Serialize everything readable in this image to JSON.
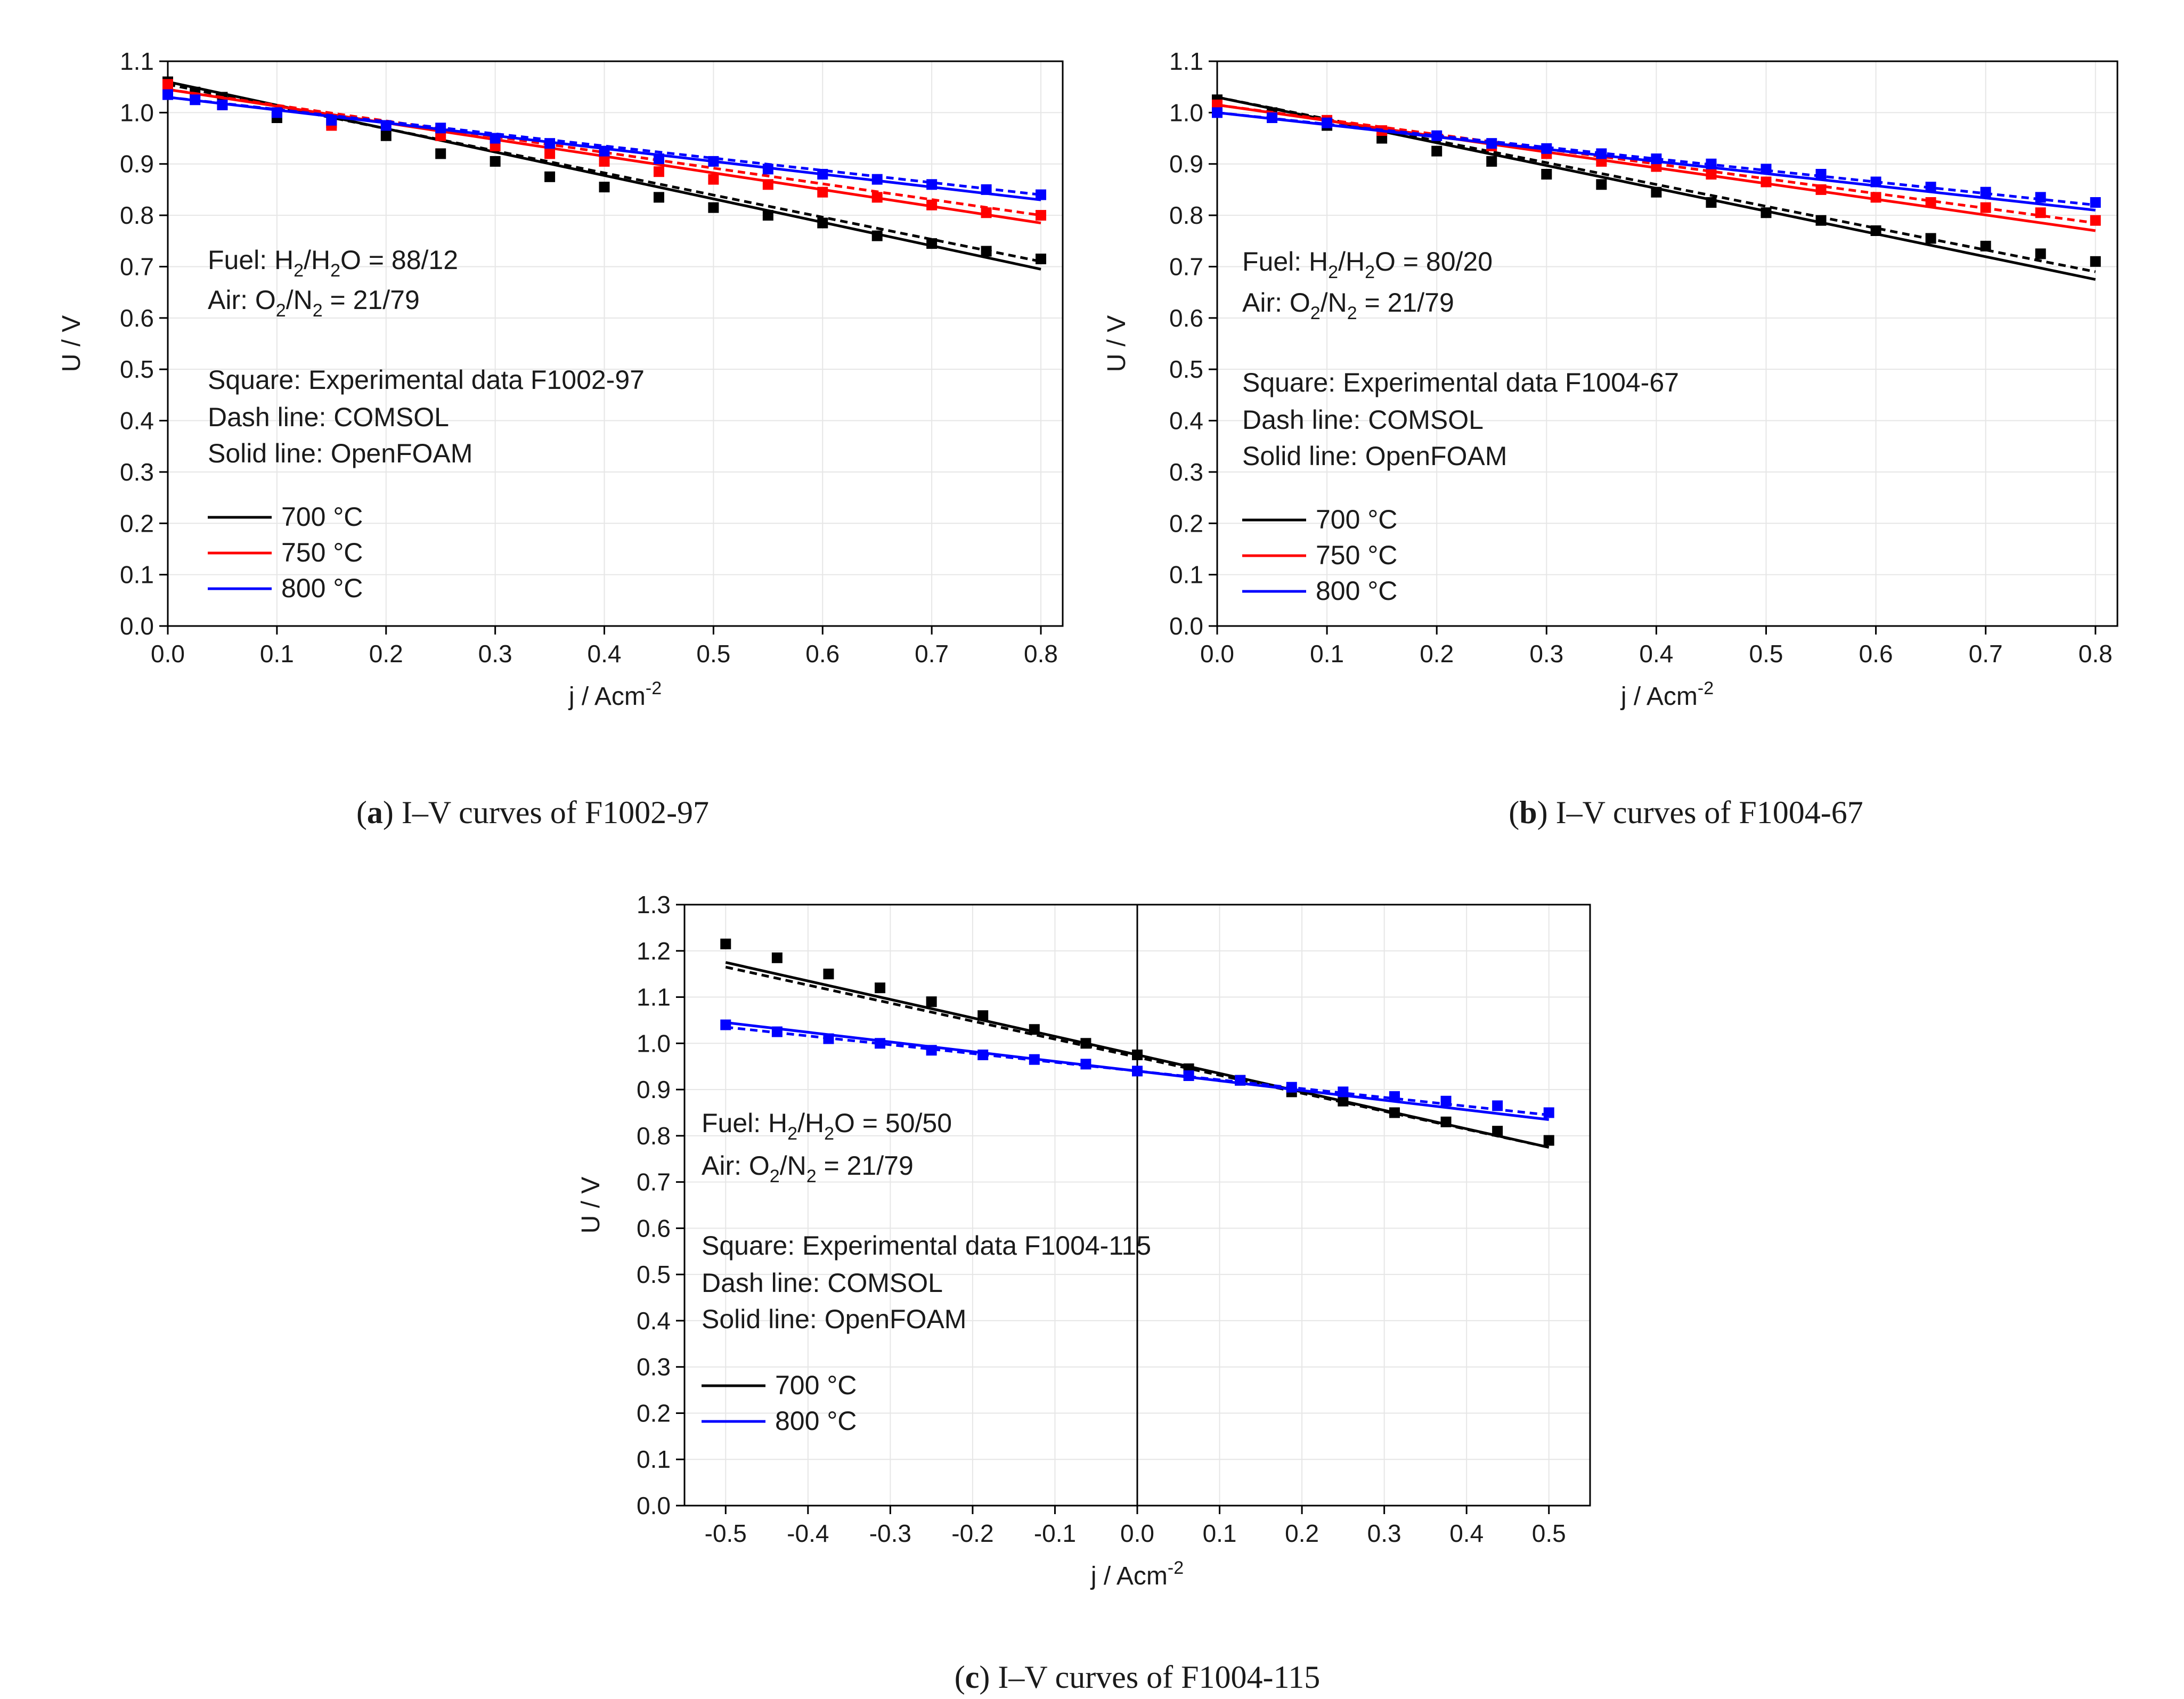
{
  "chart_data": [
    {
      "type": "line",
      "panel": "a",
      "caption_letter": "a",
      "caption_text": "I–V curves of F1002-97",
      "xlabel": "j / Acm",
      "xlabel_sup": "-2",
      "ylabel": "U / V",
      "xlim": [
        0.0,
        0.82
      ],
      "ylim": [
        0.0,
        1.1
      ],
      "xticks": [
        0.0,
        0.1,
        0.2,
        0.3,
        0.4,
        0.5,
        0.6,
        0.7,
        0.8
      ],
      "xtick_labels": [
        "0.0",
        "0.1",
        "0.2",
        "0.3",
        "0.4",
        "0.5",
        "0.6",
        "0.7",
        "0.8"
      ],
      "yticks": [
        0.0,
        0.1,
        0.2,
        0.3,
        0.4,
        0.5,
        0.6,
        0.7,
        0.8,
        0.9,
        1.0,
        1.1
      ],
      "ytick_labels": [
        "0.0",
        "0.1",
        "0.2",
        "0.3",
        "0.4",
        "0.5",
        "0.6",
        "0.7",
        "0.8",
        "0.9",
        "1.0",
        "1.1"
      ],
      "grid": true,
      "zero_line": false,
      "annotation": {
        "fuel_prefix": "Fuel: H",
        "fuel_sub1": "2",
        "fuel_mid": "/H",
        "fuel_sub2": "2",
        "fuel_suffix": "O = 88/12",
        "air_prefix": "Air: O",
        "air_sub1": "2",
        "air_mid": "/N",
        "air_sub2": "2",
        "air_suffix": " = 21/79",
        "square_text": "Square: Experimental data F1002-97",
        "dash_text": "Dash line: COMSOL",
        "solid_text": "Solid line: OpenFOAM"
      },
      "legend": [
        "700 °C",
        "750 °C",
        "800 °C"
      ],
      "series": [
        {
          "name": "700 °C",
          "color": "#000000",
          "x": [
            0.0,
            0.025,
            0.05,
            0.1,
            0.15,
            0.2,
            0.25,
            0.3,
            0.35,
            0.4,
            0.45,
            0.5,
            0.55,
            0.6,
            0.65,
            0.7,
            0.75,
            0.8
          ],
          "exp": [
            1.06,
            1.04,
            1.03,
            0.99,
            0.98,
            0.955,
            0.92,
            0.905,
            0.875,
            0.855,
            0.835,
            0.815,
            0.8,
            0.785,
            0.76,
            0.745,
            0.73,
            0.715
          ],
          "comsol": [
            1.055,
            0.71
          ],
          "openfoam": [
            1.06,
            0.695
          ]
        },
        {
          "name": "750 °C",
          "color": "#ff0000",
          "x": [
            0.0,
            0.05,
            0.15,
            0.25,
            0.3,
            0.35,
            0.4,
            0.45,
            0.5,
            0.55,
            0.6,
            0.65,
            0.7,
            0.75,
            0.8
          ],
          "exp": [
            1.055,
            1.015,
            0.975,
            0.955,
            0.935,
            0.92,
            0.905,
            0.885,
            0.87,
            0.86,
            0.845,
            0.835,
            0.82,
            0.805,
            0.8
          ],
          "comsol": [
            1.045,
            0.8
          ],
          "openfoam": [
            1.045,
            0.785
          ]
        },
        {
          "name": "800 °C",
          "color": "#0000ff",
          "x": [
            0.0,
            0.025,
            0.05,
            0.1,
            0.15,
            0.2,
            0.25,
            0.3,
            0.35,
            0.4,
            0.45,
            0.5,
            0.55,
            0.6,
            0.65,
            0.7,
            0.75,
            0.8
          ],
          "exp": [
            1.035,
            1.025,
            1.015,
            1.0,
            0.985,
            0.975,
            0.97,
            0.95,
            0.94,
            0.925,
            0.91,
            0.905,
            0.89,
            0.88,
            0.87,
            0.86,
            0.85,
            0.84
          ],
          "comsol": [
            1.03,
            0.84
          ],
          "openfoam": [
            1.03,
            0.83
          ]
        }
      ]
    },
    {
      "type": "line",
      "panel": "b",
      "caption_letter": "b",
      "caption_text": "I–V curves of F1004-67",
      "xlabel": "j / Acm",
      "xlabel_sup": "-2",
      "ylabel": "U / V",
      "xlim": [
        0.0,
        0.82
      ],
      "ylim": [
        0.0,
        1.1
      ],
      "xticks": [
        0.0,
        0.1,
        0.2,
        0.3,
        0.4,
        0.5,
        0.6,
        0.7,
        0.8
      ],
      "xtick_labels": [
        "0.0",
        "0.1",
        "0.2",
        "0.3",
        "0.4",
        "0.5",
        "0.6",
        "0.7",
        "0.8"
      ],
      "yticks": [
        0.0,
        0.1,
        0.2,
        0.3,
        0.4,
        0.5,
        0.6,
        0.7,
        0.8,
        0.9,
        1.0,
        1.1
      ],
      "ytick_labels": [
        "0.0",
        "0.1",
        "0.2",
        "0.3",
        "0.4",
        "0.5",
        "0.6",
        "0.7",
        "0.8",
        "0.9",
        "1.0",
        "1.1"
      ],
      "grid": true,
      "zero_line": false,
      "annotation": {
        "fuel_prefix": "Fuel: H",
        "fuel_sub1": "2",
        "fuel_mid": "/H",
        "fuel_sub2": "2",
        "fuel_suffix": "O = 80/20",
        "air_prefix": "Air: O",
        "air_sub1": "2",
        "air_mid": "/N",
        "air_sub2": "2",
        "air_suffix": " = 21/79",
        "square_text": "Square: Experimental data F1004-67",
        "dash_text": "Dash line: COMSOL",
        "solid_text": "Solid line: OpenFOAM"
      },
      "legend": [
        "700 °C",
        "750 °C",
        "800 °C"
      ],
      "series": [
        {
          "name": "700 °C",
          "color": "#000000",
          "x": [
            0.0,
            0.05,
            0.1,
            0.15,
            0.2,
            0.25,
            0.3,
            0.35,
            0.4,
            0.45,
            0.5,
            0.55,
            0.6,
            0.65,
            0.7,
            0.75,
            0.8
          ],
          "exp": [
            1.025,
            1.0,
            0.975,
            0.95,
            0.925,
            0.905,
            0.88,
            0.86,
            0.845,
            0.825,
            0.805,
            0.79,
            0.77,
            0.755,
            0.74,
            0.725,
            0.71
          ],
          "comsol": [
            1.03,
            0.69
          ],
          "openfoam": [
            1.03,
            0.675
          ]
        },
        {
          "name": "750 °C",
          "color": "#ff0000",
          "x": [
            0.0,
            0.1,
            0.15,
            0.25,
            0.3,
            0.35,
            0.4,
            0.45,
            0.5,
            0.55,
            0.6,
            0.65,
            0.7,
            0.75,
            0.8
          ],
          "exp": [
            1.015,
            0.985,
            0.965,
            0.935,
            0.92,
            0.905,
            0.895,
            0.88,
            0.865,
            0.85,
            0.835,
            0.825,
            0.815,
            0.805,
            0.79
          ],
          "comsol": [
            1.015,
            0.785
          ],
          "openfoam": [
            1.015,
            0.77
          ]
        },
        {
          "name": "800 °C",
          "color": "#0000ff",
          "x": [
            0.0,
            0.05,
            0.1,
            0.2,
            0.25,
            0.3,
            0.35,
            0.4,
            0.45,
            0.5,
            0.55,
            0.6,
            0.65,
            0.7,
            0.75,
            0.8
          ],
          "exp": [
            1.0,
            0.99,
            0.98,
            0.955,
            0.94,
            0.93,
            0.92,
            0.91,
            0.9,
            0.89,
            0.88,
            0.865,
            0.855,
            0.845,
            0.835,
            0.825
          ],
          "comsol": [
            1.0,
            0.82
          ],
          "openfoam": [
            1.0,
            0.81
          ]
        }
      ]
    },
    {
      "type": "line",
      "panel": "c",
      "caption_letter": "c",
      "caption_text": "I–V curves of F1004-115",
      "xlabel": "j / Acm",
      "xlabel_sup": "-2",
      "ylabel": "U / V",
      "xlim": [
        -0.55,
        0.55
      ],
      "ylim": [
        0.0,
        1.3
      ],
      "xticks": [
        -0.5,
        -0.4,
        -0.3,
        -0.2,
        -0.1,
        0.0,
        0.1,
        0.2,
        0.3,
        0.4,
        0.5
      ],
      "xtick_labels": [
        "-0.5",
        "-0.4",
        "-0.3",
        "-0.2",
        "-0.1",
        "0.0",
        "0.1",
        "0.2",
        "0.3",
        "0.4",
        "0.5"
      ],
      "yticks": [
        0.0,
        0.1,
        0.2,
        0.3,
        0.4,
        0.5,
        0.6,
        0.7,
        0.8,
        0.9,
        1.0,
        1.1,
        1.2,
        1.3
      ],
      "ytick_labels": [
        "0.0",
        "0.1",
        "0.2",
        "0.3",
        "0.4",
        "0.5",
        "0.6",
        "0.7",
        "0.8",
        "0.9",
        "1.0",
        "1.1",
        "1.2",
        "1.3"
      ],
      "grid": true,
      "zero_line": true,
      "annotation": {
        "fuel_prefix": "Fuel: H",
        "fuel_sub1": "2",
        "fuel_mid": "/H",
        "fuel_sub2": "2",
        "fuel_suffix": "O = 50/50",
        "air_prefix": "Air: O",
        "air_sub1": "2",
        "air_mid": "/N",
        "air_sub2": "2",
        "air_suffix": " = 21/79",
        "square_text": "Square: Experimental data F1004-115",
        "dash_text": "Dash line: COMSOL",
        "solid_text": "Solid line: OpenFOAM"
      },
      "legend": [
        "700 °C",
        "800 °C"
      ],
      "series": [
        {
          "name": "700 °C",
          "color": "#000000",
          "x": [
            -0.5,
            -0.4375,
            -0.375,
            -0.3125,
            -0.25,
            -0.1875,
            -0.125,
            -0.0625,
            0.0,
            0.0625,
            0.125,
            0.1875,
            0.25,
            0.3125,
            0.375,
            0.4375,
            0.5
          ],
          "exp": [
            1.215,
            1.185,
            1.15,
            1.12,
            1.09,
            1.06,
            1.03,
            1.0,
            0.975,
            0.945,
            0.92,
            0.895,
            0.875,
            0.85,
            0.83,
            0.81,
            0.79
          ],
          "comsol": [
            1.165,
            0.775
          ],
          "openfoam": [
            1.175,
            0.775
          ]
        },
        {
          "name": "800 °C",
          "color": "#0000ff",
          "x": [
            -0.5,
            -0.4375,
            -0.375,
            -0.3125,
            -0.25,
            -0.1875,
            -0.125,
            -0.0625,
            0.0,
            0.0625,
            0.125,
            0.1875,
            0.25,
            0.3125,
            0.375,
            0.4375,
            0.5
          ],
          "exp": [
            1.04,
            1.025,
            1.01,
            1.0,
            0.985,
            0.975,
            0.965,
            0.955,
            0.94,
            0.93,
            0.92,
            0.905,
            0.895,
            0.885,
            0.875,
            0.865,
            0.85
          ],
          "comsol": [
            1.035,
            0.845
          ],
          "openfoam": [
            1.045,
            0.835
          ]
        }
      ]
    }
  ]
}
